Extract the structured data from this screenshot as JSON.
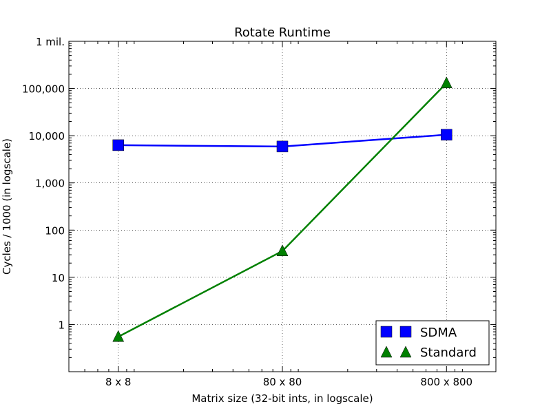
{
  "chart_data": {
    "type": "line",
    "title": "Rotate Runtime",
    "xlabel": "Matrix size (32-bit ints, in logscale)",
    "ylabel": "Cycles / 1000 (in logscale)",
    "xscale": "log",
    "yscale": "log",
    "xlim": [
      4,
      1600
    ],
    "ylim": [
      0.1,
      1000000
    ],
    "grid": true,
    "legend_position": "lower-right",
    "x": [
      8,
      80,
      800
    ],
    "xtick_labels": [
      "8 x 8",
      "80 x 80",
      "800 x 800"
    ],
    "ytick_values": [
      1,
      10,
      100,
      1000,
      10000,
      100000,
      1000000
    ],
    "ytick_labels": [
      "1",
      "10",
      "100",
      "1,000",
      "10,000",
      "100,000",
      "1 mil."
    ],
    "series": [
      {
        "name": "SDMA",
        "values": [
          6300,
          5900,
          10500
        ],
        "color": "#0000ff",
        "marker": "square"
      },
      {
        "name": "Standard",
        "values": [
          0.55,
          36,
          130000
        ],
        "color": "#008000",
        "marker": "triangle"
      }
    ]
  }
}
